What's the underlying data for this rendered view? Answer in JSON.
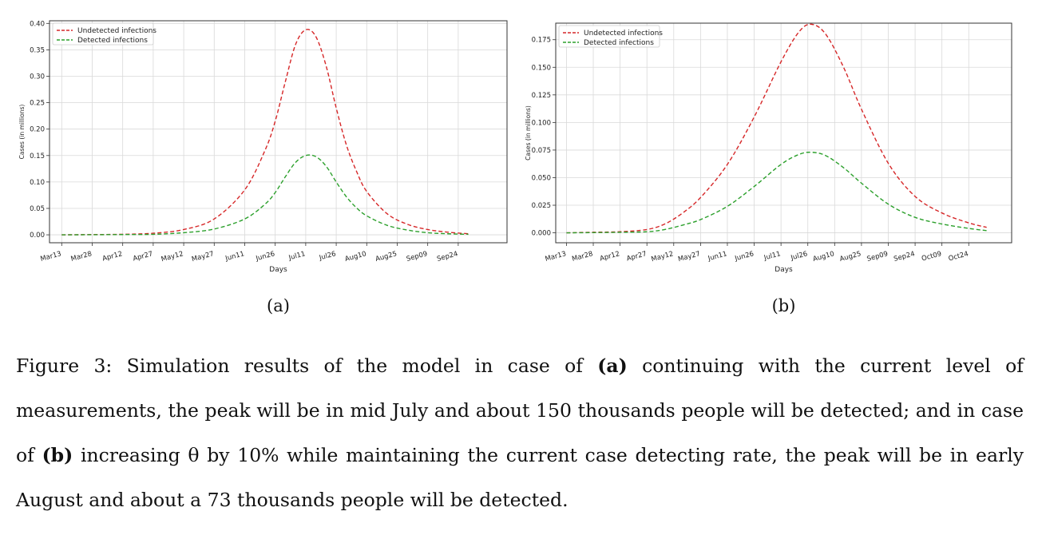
{
  "chart_data": [
    {
      "type": "line",
      "panel_label": "(a)",
      "xlabel": "Days",
      "ylabel": "Cases (in millions)",
      "x_tick_labels": [
        "Mar13",
        "Mar28",
        "Apr12",
        "Apr27",
        "May12",
        "May27",
        "Jun11",
        "Jun26",
        "Jul11",
        "Jul26",
        "Aug10",
        "Aug25",
        "Sep09",
        "Sep24"
      ],
      "x_tick_days": [
        0,
        15,
        30,
        45,
        60,
        75,
        90,
        105,
        120,
        135,
        150,
        165,
        180,
        195
      ],
      "xlim_days": [
        -6,
        219
      ],
      "ylim": [
        -0.015,
        0.405
      ],
      "y_ticks": [
        0.0,
        0.05,
        0.1,
        0.15,
        0.2,
        0.25,
        0.3,
        0.35,
        0.4
      ],
      "y_tick_labels": [
        "0.00",
        "0.05",
        "0.10",
        "0.15",
        "0.20",
        "0.25",
        "0.30",
        "0.35",
        "0.40"
      ],
      "grid": true,
      "legend_position": "top-left",
      "series": [
        {
          "name": "Undetected infections",
          "color": "#d62728",
          "style": "dashed",
          "x_days": [
            0,
            15,
            30,
            45,
            60,
            75,
            90,
            100,
            105,
            110,
            115,
            120,
            125,
            130,
            135,
            140,
            145,
            150,
            160,
            170,
            180,
            190,
            200
          ],
          "y": [
            0.0,
            0.0005,
            0.001,
            0.003,
            0.01,
            0.03,
            0.085,
            0.16,
            0.215,
            0.29,
            0.36,
            0.388,
            0.375,
            0.32,
            0.24,
            0.17,
            0.12,
            0.082,
            0.04,
            0.02,
            0.01,
            0.005,
            0.002
          ]
        },
        {
          "name": "Detected infections",
          "color": "#2ca02c",
          "style": "dashed",
          "x_days": [
            0,
            15,
            30,
            45,
            60,
            75,
            90,
            100,
            105,
            110,
            115,
            120,
            125,
            130,
            135,
            140,
            145,
            150,
            160,
            170,
            180,
            190,
            200
          ],
          "y": [
            0.0,
            0.0002,
            0.0005,
            0.001,
            0.004,
            0.011,
            0.03,
            0.058,
            0.08,
            0.11,
            0.137,
            0.15,
            0.148,
            0.13,
            0.1,
            0.072,
            0.051,
            0.036,
            0.018,
            0.009,
            0.004,
            0.002,
            0.001
          ]
        }
      ]
    },
    {
      "type": "line",
      "panel_label": "(b)",
      "xlabel": "Days",
      "ylabel": "Cases (in millions)",
      "x_tick_labels": [
        "Mar13",
        "Mar28",
        "Apr12",
        "Apr27",
        "May12",
        "May27",
        "Jun11",
        "Jun26",
        "Jul11",
        "Jul26",
        "Aug10",
        "Aug25",
        "Sep09",
        "Sep24",
        "Oct09",
        "Oct24"
      ],
      "x_tick_days": [
        0,
        15,
        30,
        45,
        60,
        75,
        90,
        105,
        120,
        135,
        150,
        165,
        180,
        195,
        210,
        225
      ],
      "xlim_days": [
        -6,
        249
      ],
      "ylim": [
        -0.009,
        0.19
      ],
      "y_ticks": [
        0.0,
        0.025,
        0.05,
        0.075,
        0.1,
        0.125,
        0.15,
        0.175
      ],
      "y_tick_labels": [
        "0.000",
        "0.025",
        "0.050",
        "0.075",
        "0.100",
        "0.125",
        "0.150",
        "0.175"
      ],
      "grid": true,
      "legend_position": "top-left",
      "series": [
        {
          "name": "Undetected infections",
          "color": "#d62728",
          "style": "dashed",
          "x_days": [
            0,
            15,
            30,
            45,
            55,
            65,
            75,
            90,
            105,
            120,
            130,
            137,
            145,
            155,
            165,
            180,
            195,
            210,
            225,
            235
          ],
          "y": [
            0.0,
            0.0005,
            0.001,
            0.003,
            0.008,
            0.018,
            0.032,
            0.062,
            0.105,
            0.155,
            0.182,
            0.189,
            0.18,
            0.15,
            0.112,
            0.063,
            0.033,
            0.018,
            0.009,
            0.005
          ]
        },
        {
          "name": "Detected infections",
          "color": "#2ca02c",
          "style": "dashed",
          "x_days": [
            0,
            15,
            30,
            45,
            55,
            65,
            75,
            90,
            105,
            120,
            130,
            137,
            145,
            155,
            165,
            180,
            195,
            210,
            225,
            235
          ],
          "y": [
            0.0,
            0.0002,
            0.0005,
            0.001,
            0.003,
            0.007,
            0.012,
            0.024,
            0.042,
            0.062,
            0.071,
            0.073,
            0.07,
            0.059,
            0.045,
            0.026,
            0.014,
            0.008,
            0.004,
            0.002
          ]
        }
      ]
    }
  ],
  "caption": {
    "t1": "Figure 3: Simulation results of the model in case of ",
    "b1": "(a)",
    "t2": " continuing with the current level of measurements, the peak will be in mid July and about 150 thousands people will be detected; and in case of ",
    "b2": "(b)",
    "t3": " increasing θ by 10% while maintaining the current case detecting rate, the peak will be in early August and about a 73 thousands people will be detected."
  }
}
